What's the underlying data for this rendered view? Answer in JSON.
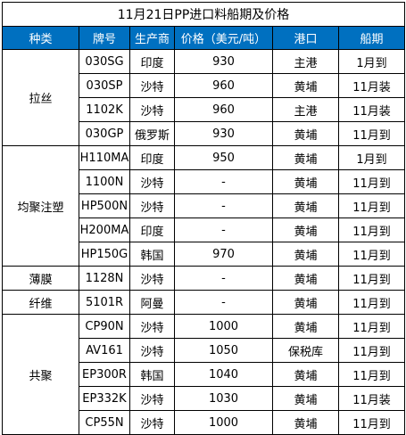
{
  "title": "11月21日PP进口料船期及价格",
  "headers": {
    "category": "种类",
    "grade": "牌号",
    "origin": "生产商",
    "price": "价格（美元/吨）",
    "port": "港口",
    "schedule": "船期"
  },
  "groups": [
    {
      "category": "拉丝",
      "rows": [
        {
          "grade": "030SG",
          "origin": "印度",
          "price": "930",
          "port": "主港",
          "schedule": "1月到"
        },
        {
          "grade": "030SP",
          "origin": "沙特",
          "price": "960",
          "port": "黄埔",
          "schedule": "11月装"
        },
        {
          "grade": "1102K",
          "origin": "沙特",
          "price": "960",
          "port": "主港",
          "schedule": "11月装"
        },
        {
          "grade": "030GP",
          "origin": "俄罗斯",
          "price": "930",
          "port": "黄埔",
          "schedule": "11月到"
        }
      ]
    },
    {
      "category": "均聚注塑",
      "rows": [
        {
          "grade": "H110MA",
          "origin": "印度",
          "price": "950",
          "port": "黄埔",
          "schedule": "1月到"
        },
        {
          "grade": "1100N",
          "origin": "沙特",
          "price": "-",
          "port": "黄埔",
          "schedule": "11月到"
        },
        {
          "grade": "HP500N",
          "origin": "沙特",
          "price": "-",
          "port": "黄埔",
          "schedule": "11月到"
        },
        {
          "grade": "H200MA",
          "origin": "印度",
          "price": "-",
          "port": "黄埔",
          "schedule": "11月到"
        },
        {
          "grade": "HP150G",
          "origin": "韩国",
          "price": "970",
          "port": "黄埔",
          "schedule": "11月到"
        }
      ]
    },
    {
      "category": "薄膜",
      "rows": [
        {
          "grade": "1128N",
          "origin": "沙特",
          "price": "-",
          "port": "黄埔",
          "schedule": "11月到"
        }
      ]
    },
    {
      "category": "纤维",
      "rows": [
        {
          "grade": "5101R",
          "origin": "阿曼",
          "price": "-",
          "port": "黄埔",
          "schedule": "11月到"
        }
      ]
    },
    {
      "category": "共聚",
      "rows": [
        {
          "grade": "CP90N",
          "origin": "沙特",
          "price": "1000",
          "port": "黄埔",
          "schedule": "11月到"
        },
        {
          "grade": "AV161",
          "origin": "沙特",
          "price": "1050",
          "port": "保税库",
          "schedule": "11月到"
        },
        {
          "grade": "EP300R",
          "origin": "韩国",
          "price": "1040",
          "port": "黄埔",
          "schedule": "11月到"
        },
        {
          "grade": "EP332K",
          "origin": "沙特",
          "price": "1030",
          "port": "黄埔",
          "schedule": "11月装"
        },
        {
          "grade": "CP55N",
          "origin": "沙特",
          "price": "1000",
          "port": "黄埔",
          "schedule": "11月到"
        }
      ]
    }
  ]
}
